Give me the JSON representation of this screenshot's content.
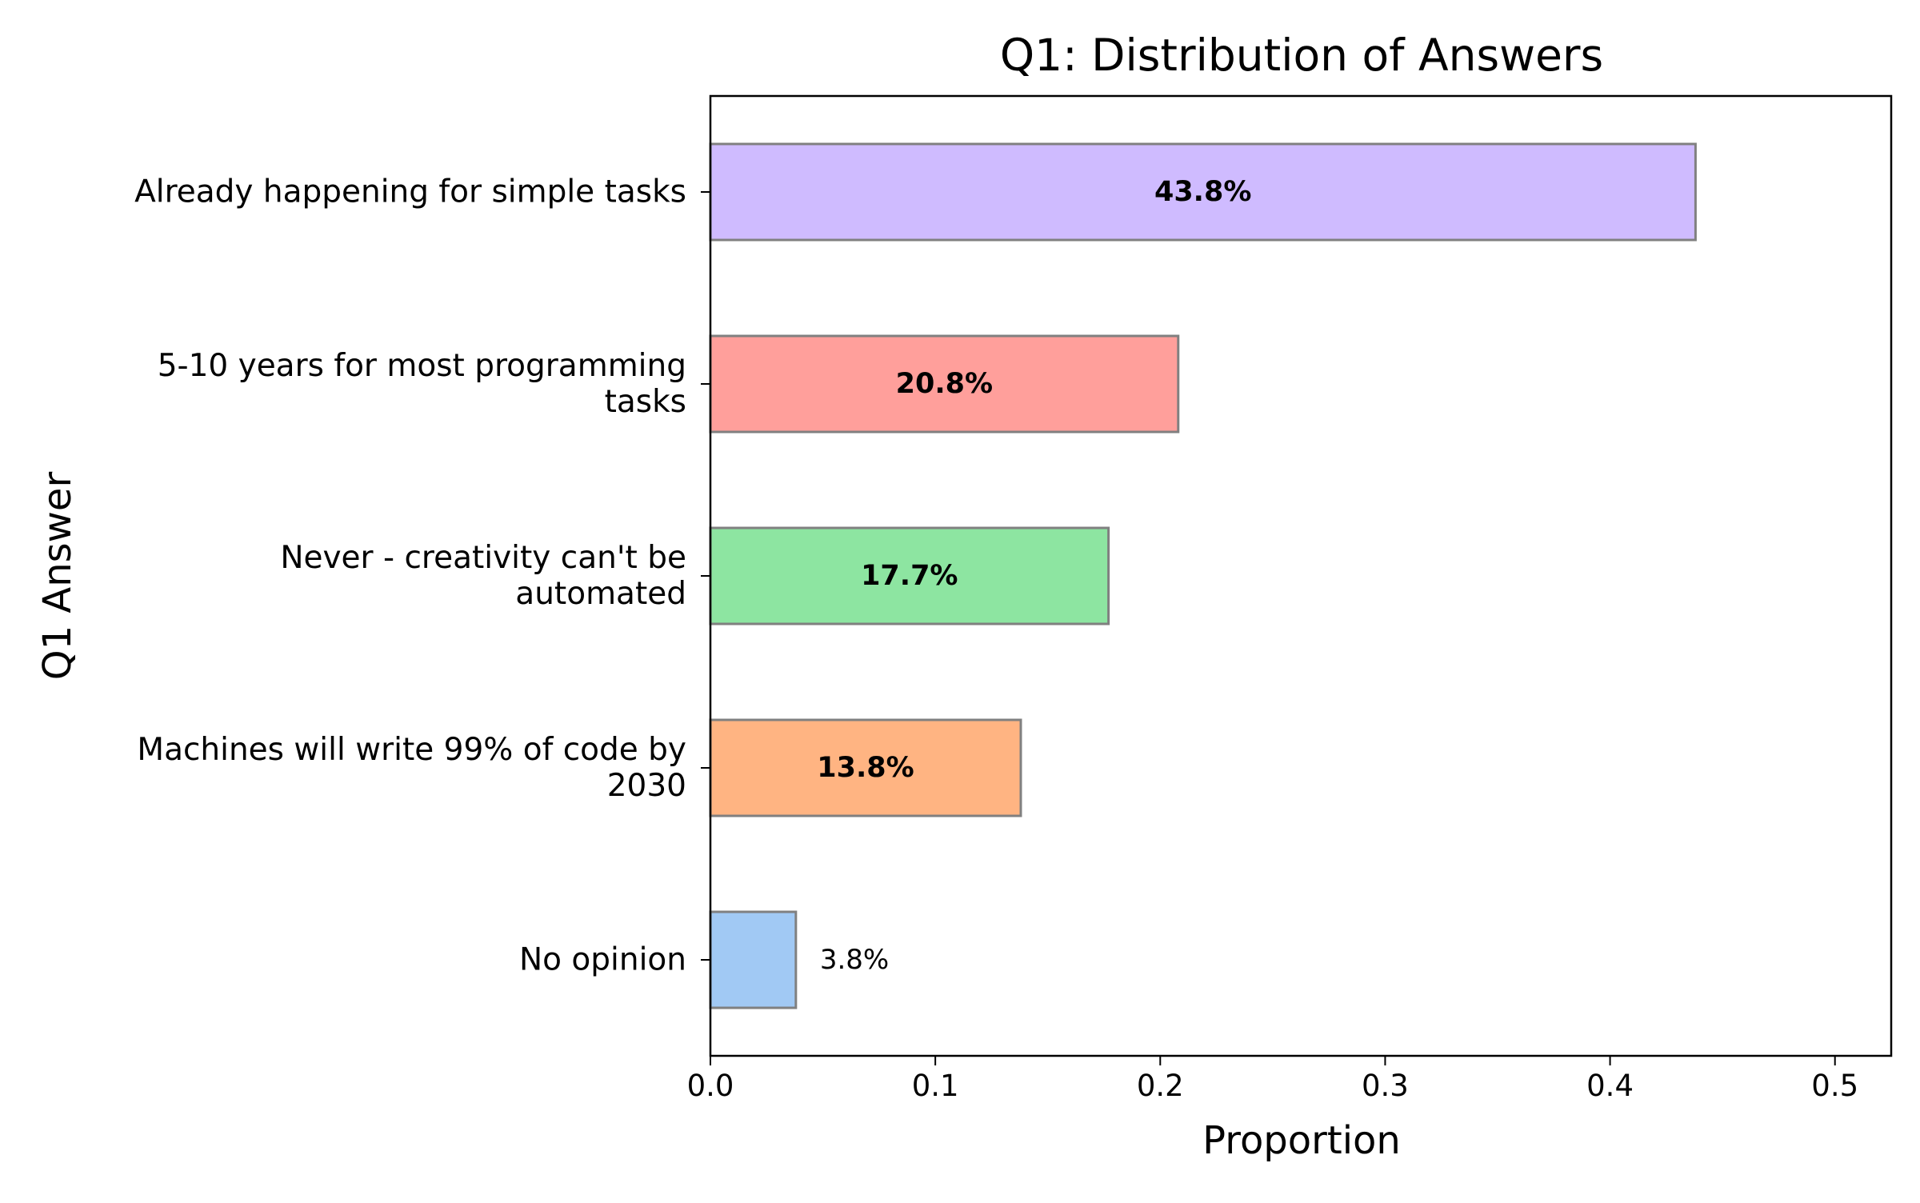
{
  "chart_data": {
    "type": "bar",
    "orientation": "horizontal",
    "title": "Q1: Distribution of Answers",
    "xlabel": "Proportion",
    "ylabel": "Q1 Answer",
    "xlim": [
      0,
      0.525
    ],
    "xticks": [
      0.0,
      0.1,
      0.2,
      0.3,
      0.4,
      0.5
    ],
    "xtick_labels": [
      "0.0",
      "0.1",
      "0.2",
      "0.3",
      "0.4",
      "0.5"
    ],
    "grid": false,
    "categories": [
      "Already happening for simple tasks",
      "5-10 years for most programming tasks",
      "Never - creativity can't be automated",
      "Machines will write 99% of code by 2030",
      "No opinion"
    ],
    "category_label_lines": [
      [
        "Already happening for simple tasks"
      ],
      [
        "5-10 years for most programming",
        "tasks"
      ],
      [
        "Never - creativity can't be",
        "automated"
      ],
      [
        "Machines will write 99% of code by",
        "2030"
      ],
      [
        "No opinion"
      ]
    ],
    "values": [
      0.438,
      0.208,
      0.177,
      0.138,
      0.038
    ],
    "value_labels": [
      "43.8%",
      "20.8%",
      "17.7%",
      "13.8%",
      "3.8%"
    ],
    "label_placement": [
      "inside",
      "inside",
      "inside",
      "inside",
      "outside"
    ],
    "colors": [
      "#cfbbff",
      "#ff9f9b",
      "#8de5a1",
      "#ffb482",
      "#a1c9f4"
    ],
    "edge_color": "#808080"
  }
}
